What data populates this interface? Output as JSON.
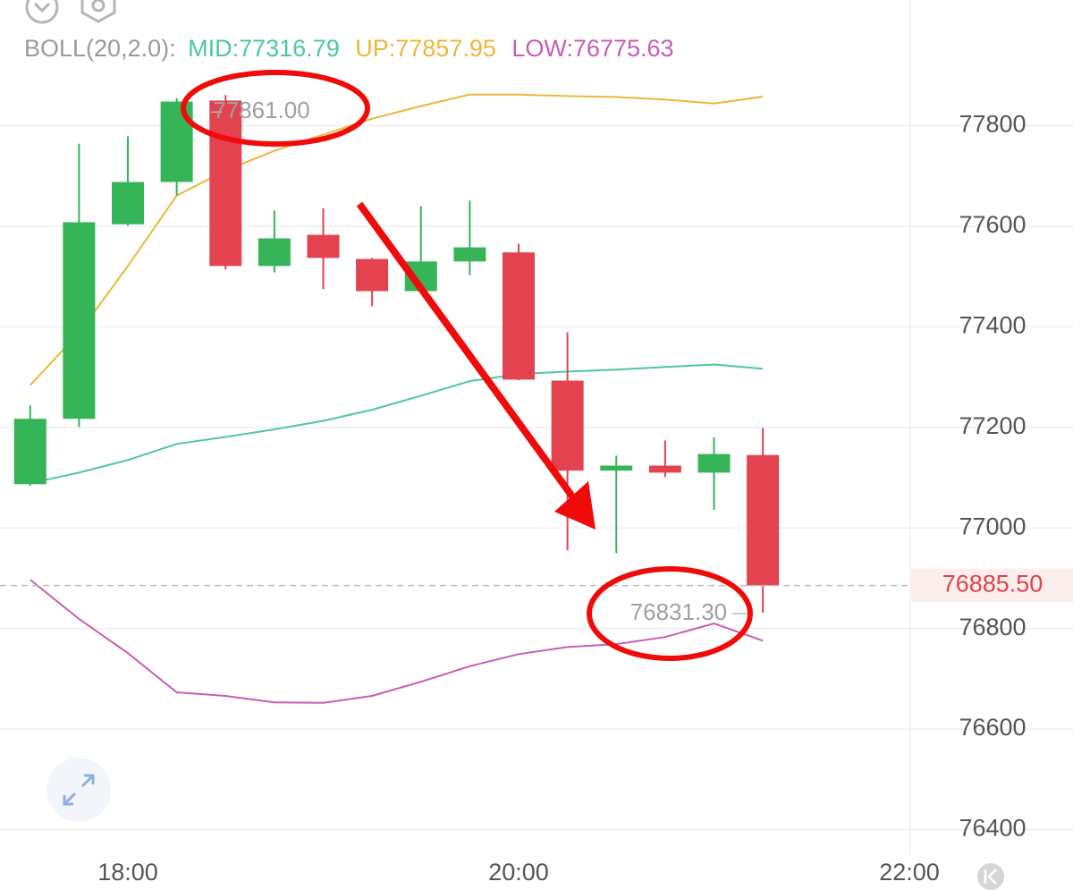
{
  "chart_data": {
    "type": "candlestick",
    "indicator_label": "BOLL(20,2.0):",
    "x": [
      17.5,
      17.75,
      18,
      18.25,
      18.5,
      18.75,
      19,
      19.25,
      19.5,
      19.75,
      20,
      20.25,
      20.5,
      20.75,
      21,
      21.25
    ],
    "open": [
      77087,
      77217,
      77604,
      77688,
      77850,
      77521,
      77583,
      77535,
      77471,
      77530,
      77548,
      77293,
      77114,
      77124,
      77110,
      77145
    ],
    "high": [
      77244,
      77764,
      77779,
      77855,
      77861,
      77631,
      77636,
      77537,
      77640,
      77651,
      77565,
      77389,
      77144,
      77174,
      77180,
      77199
    ],
    "low": [
      77084,
      77201,
      77601,
      77661,
      77514,
      77508,
      77475,
      77441,
      77469,
      77503,
      77294,
      76956,
      76950,
      77101,
      77036,
      76831.3
    ],
    "close": [
      77217,
      77608,
      77688,
      77848,
      77521,
      77576,
      77537,
      77471,
      77530,
      77558,
      77295,
      77114,
      77124,
      77110,
      77147,
      76885.5
    ],
    "up_color": "#36b458",
    "down_color": "#e2434f",
    "series": [
      {
        "name": "MID:77316.79",
        "color": "#4cc7a6",
        "values": [
          77089,
          77110,
          77135,
          77167,
          77181,
          77196,
          77213,
          77235,
          77263,
          77292,
          77306,
          77311,
          77315,
          77320,
          77325,
          77316.79
        ]
      },
      {
        "name": "UP:77857.95",
        "color": "#ebb73b",
        "values": [
          77284,
          77388,
          77521,
          77661,
          77711,
          77750,
          77782,
          77814,
          77839,
          77862,
          77862,
          77859,
          77857,
          77852,
          77844,
          77857.95
        ]
      },
      {
        "name": "LOW:76775.63",
        "color": "#c95cb5",
        "values": [
          76897,
          76819,
          76751,
          76673,
          76666,
          76653,
          76652,
          76666,
          76694,
          76725,
          76749,
          76763,
          76769,
          76783,
          76810,
          76775.63
        ]
      }
    ],
    "annotations": [
      {
        "text": "77861.00",
        "value": 77861,
        "x": 18.5
      },
      {
        "text": "76831.30",
        "value": 76831.3,
        "x": 21.25
      }
    ],
    "last_price": {
      "value": 76885.5,
      "label": "76885.50"
    },
    "xlim": [
      17.3455,
      22
    ],
    "xticks": [
      {
        "value": 18,
        "label": "18:00"
      },
      {
        "value": 20,
        "label": "20:00"
      },
      {
        "value": 22,
        "label": "22:00"
      }
    ],
    "ylim": [
      76350,
      78050
    ],
    "yticks": [
      76400,
      76600,
      76800,
      77000,
      77200,
      77400,
      77600,
      77800
    ],
    "grid": true
  }
}
